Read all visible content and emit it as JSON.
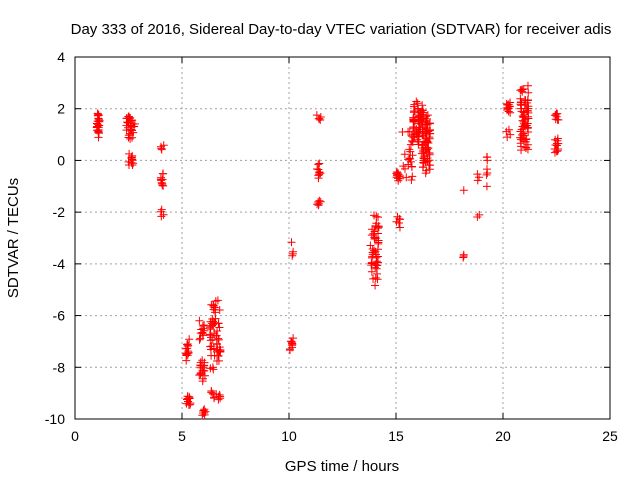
{
  "chart_data": {
    "type": "scatter",
    "title": "Day 333 of 2016, Sidereal Day-to-day VTEC variation (SDTVAR) for receiver adis",
    "xlabel": "GPS time / hours",
    "ylabel": "SDTVAR / TECUs",
    "xlim": [
      0,
      25
    ],
    "ylim": [
      -10,
      4
    ],
    "x_ticks": [
      0,
      5,
      10,
      15,
      20,
      25
    ],
    "y_ticks": [
      -10,
      -8,
      -6,
      -4,
      -2,
      0,
      2,
      4
    ],
    "grid": true,
    "marker": "plus",
    "color": "#ff0000",
    "clusters": [
      {
        "x": [
          1.0,
          1.15
        ],
        "y": [
          0.8,
          2.0
        ],
        "n": 28
      },
      {
        "x": [
          2.4,
          2.8
        ],
        "y": [
          0.8,
          1.8
        ],
        "n": 30
      },
      {
        "x": [
          2.4,
          2.8
        ],
        "y": [
          -0.3,
          0.3
        ],
        "n": 12
      },
      {
        "x": [
          4.0,
          4.15
        ],
        "y": [
          0.4,
          0.6
        ],
        "n": 4
      },
      {
        "x": [
          4.0,
          4.15
        ],
        "y": [
          -1.1,
          -0.4
        ],
        "n": 10
      },
      {
        "x": [
          4.0,
          4.15
        ],
        "y": [
          -2.2,
          -1.9
        ],
        "n": 4
      },
      {
        "x": [
          5.15,
          5.35
        ],
        "y": [
          -7.8,
          -6.9
        ],
        "n": 16
      },
      {
        "x": [
          5.2,
          5.4
        ],
        "y": [
          -9.5,
          -9.1
        ],
        "n": 12
      },
      {
        "x": [
          5.8,
          6.1
        ],
        "y": [
          -8.6,
          -7.6
        ],
        "n": 18
      },
      {
        "x": [
          5.8,
          6.1
        ],
        "y": [
          -7.0,
          -6.2
        ],
        "n": 12
      },
      {
        "x": [
          5.9,
          6.1
        ],
        "y": [
          -9.9,
          -9.6
        ],
        "n": 8
      },
      {
        "x": [
          6.3,
          6.8
        ],
        "y": [
          -8.2,
          -5.2
        ],
        "n": 60
      },
      {
        "x": [
          6.3,
          6.8
        ],
        "y": [
          -9.3,
          -8.9
        ],
        "n": 12
      },
      {
        "x": [
          10.1,
          10.2
        ],
        "y": [
          -3.2,
          -3.1
        ],
        "n": 1
      },
      {
        "x": [
          10.0,
          10.2
        ],
        "y": [
          -3.7,
          -3.5
        ],
        "n": 3
      },
      {
        "x": [
          10.0,
          10.2
        ],
        "y": [
          -7.4,
          -6.8
        ],
        "n": 10
      },
      {
        "x": [
          11.3,
          11.5
        ],
        "y": [
          1.5,
          1.8
        ],
        "n": 5
      },
      {
        "x": [
          11.3,
          11.5
        ],
        "y": [
          -0.7,
          -0.1
        ],
        "n": 10
      },
      {
        "x": [
          11.3,
          11.5
        ],
        "y": [
          -1.8,
          -1.5
        ],
        "n": 6
      },
      {
        "x": [
          13.8,
          14.2
        ],
        "y": [
          -4.9,
          -2.0
        ],
        "n": 48
      },
      {
        "x": [
          15.0,
          15.2
        ],
        "y": [
          -0.8,
          -0.4
        ],
        "n": 12
      },
      {
        "x": [
          15.0,
          15.2
        ],
        "y": [
          -2.6,
          -2.1
        ],
        "n": 6
      },
      {
        "x": [
          15.3,
          15.8
        ],
        "y": [
          -0.9,
          1.4
        ],
        "n": 24
      },
      {
        "x": [
          15.8,
          16.3
        ],
        "y": [
          0.6,
          2.4
        ],
        "n": 55
      },
      {
        "x": [
          16.2,
          16.6
        ],
        "y": [
          -0.6,
          2.0
        ],
        "n": 75
      },
      {
        "x": [
          18.1,
          18.2
        ],
        "y": [
          -1.2,
          -1.1
        ],
        "n": 1
      },
      {
        "x": [
          18.1,
          18.2
        ],
        "y": [
          -3.8,
          -3.6
        ],
        "n": 3
      },
      {
        "x": [
          18.8,
          18.9
        ],
        "y": [
          -0.8,
          -0.5
        ],
        "n": 3
      },
      {
        "x": [
          18.8,
          18.9
        ],
        "y": [
          -2.2,
          -2.1
        ],
        "n": 2
      },
      {
        "x": [
          19.2,
          19.3
        ],
        "y": [
          -1.1,
          0.5
        ],
        "n": 7
      },
      {
        "x": [
          20.15,
          20.35
        ],
        "y": [
          1.8,
          2.3
        ],
        "n": 12
      },
      {
        "x": [
          20.15,
          20.35
        ],
        "y": [
          0.9,
          1.2
        ],
        "n": 4
      },
      {
        "x": [
          20.8,
          21.2
        ],
        "y": [
          0.1,
          3.1
        ],
        "n": 70
      },
      {
        "x": [
          22.4,
          22.6
        ],
        "y": [
          1.5,
          1.9
        ],
        "n": 8
      },
      {
        "x": [
          22.4,
          22.6
        ],
        "y": [
          0.2,
          0.9
        ],
        "n": 14
      }
    ]
  }
}
